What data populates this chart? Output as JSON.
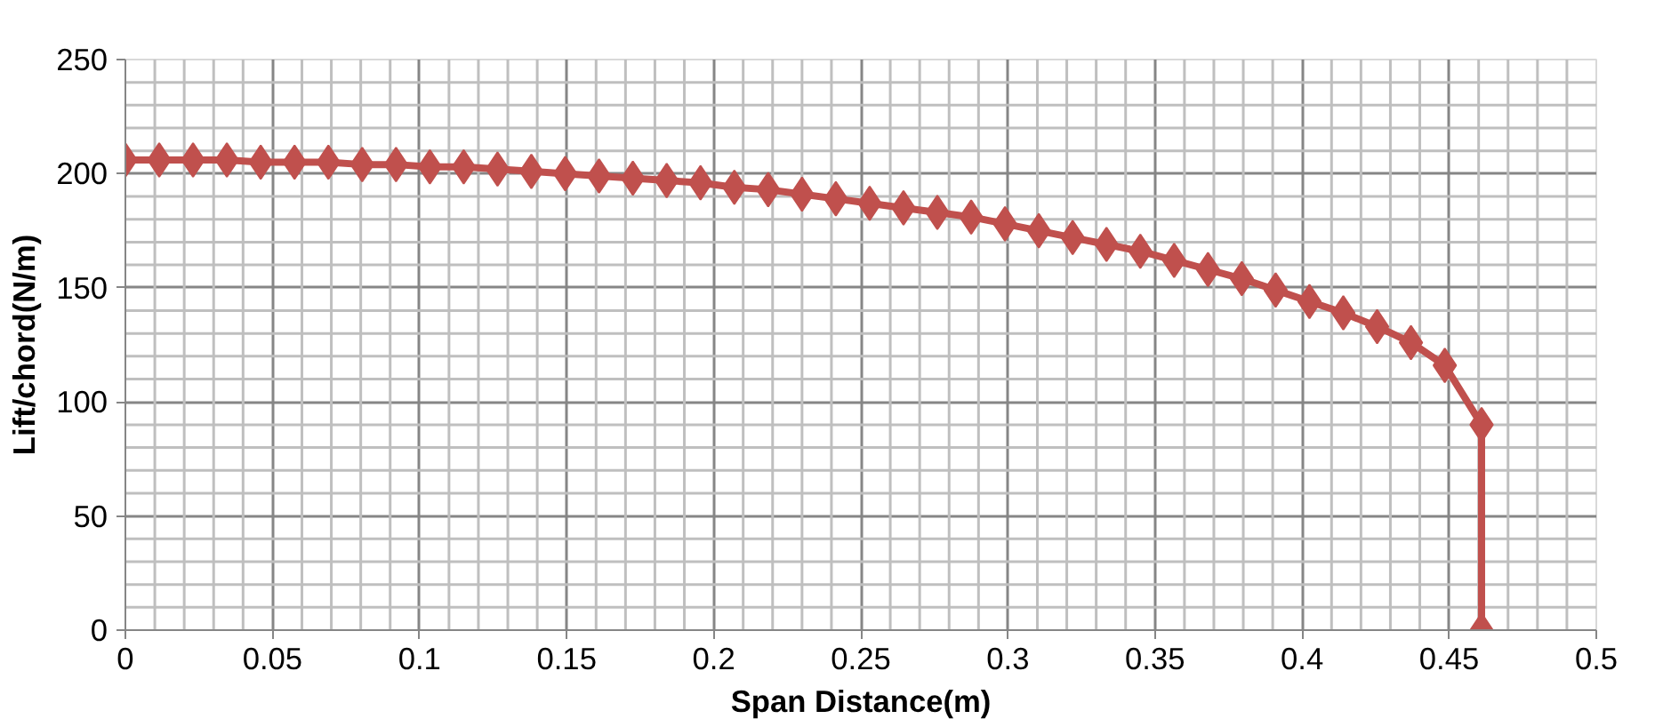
{
  "chart_data": {
    "type": "line",
    "xlabel": "Span Distance(m)",
    "ylabel": "Lift/chord(N/m)",
    "series": [
      {
        "color": "#c0504d",
        "x": [
          0,
          0.0115,
          0.023,
          0.0345,
          0.046,
          0.0575,
          0.069,
          0.0805,
          0.092,
          0.1035,
          0.115,
          0.1265,
          0.138,
          0.1495,
          0.161,
          0.1725,
          0.184,
          0.1955,
          0.207,
          0.2185,
          0.23,
          0.2415,
          0.253,
          0.2645,
          0.276,
          0.2875,
          0.299,
          0.3105,
          0.322,
          0.3335,
          0.345,
          0.3565,
          0.368,
          0.3795,
          0.391,
          0.4025,
          0.414,
          0.4255,
          0.437,
          0.4485,
          0.461,
          0.461
        ],
        "values": [
          206,
          206,
          206,
          206,
          205,
          205,
          205,
          204,
          204,
          203,
          203,
          202,
          201,
          200,
          199,
          198,
          197,
          196,
          194,
          193,
          191,
          189,
          187,
          185,
          183,
          181,
          178,
          175,
          172,
          169,
          166,
          162,
          158,
          154,
          149,
          144,
          139,
          133,
          126,
          116,
          90,
          0
        ]
      }
    ],
    "xlim": [
      0,
      0.5
    ],
    "xticks": [
      0,
      0.05,
      0.1,
      0.15,
      0.2,
      0.25,
      0.3,
      0.35,
      0.4,
      0.45,
      0.5
    ],
    "ylim": [
      0,
      250
    ],
    "yticks": [
      0,
      50,
      100,
      150,
      200,
      250
    ],
    "grid": true,
    "marker": "diamond",
    "line_style": "solid"
  }
}
